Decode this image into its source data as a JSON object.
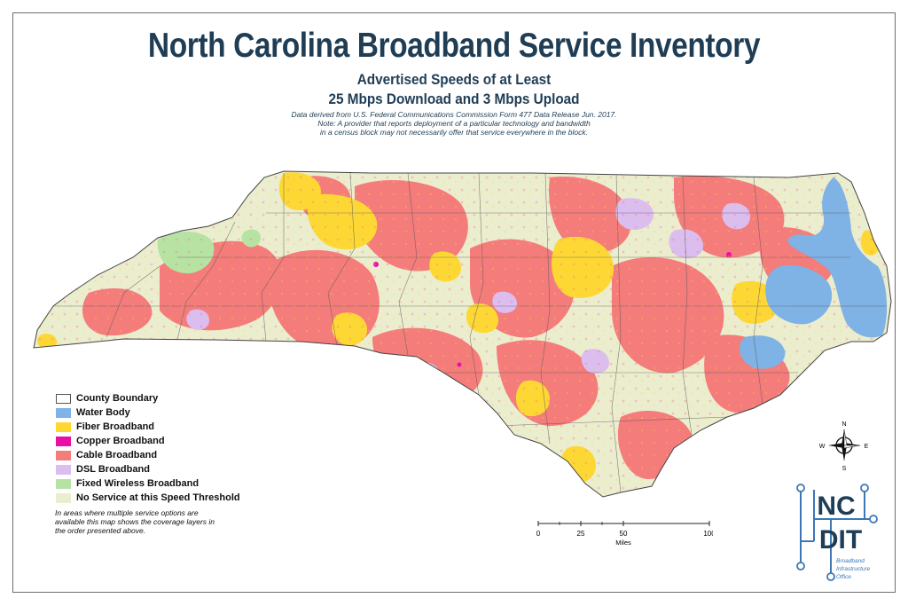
{
  "title": "North Carolina Broadband Service Inventory",
  "subtitle_line1": "Advertised Speeds of at Least",
  "subtitle_line2": "25 Mbps Download and 3 Mbps Upload",
  "notes": [
    "Data derived from U.S. Federal Communications Commission Form 477 Data Release Jun. 2017.",
    "Note: A provider that reports deployment of a particular technology and bandwidth",
    "in a census block may not necessarily offer that service everywhere in the block."
  ],
  "legend": [
    {
      "label": "County Boundary",
      "color": "#ffffff",
      "border": "#555555"
    },
    {
      "label": "Water Body",
      "color": "#7fb2e5"
    },
    {
      "label": "Fiber Broadband",
      "color": "#fdd835"
    },
    {
      "label": "Copper Broadband",
      "color": "#ea0ea8"
    },
    {
      "label": "Cable Broadband",
      "color": "#f47c7a"
    },
    {
      "label": "DSL Broadband",
      "color": "#dbbdf0"
    },
    {
      "label": "Fixed Wireless Broadband",
      "color": "#b6e3a4"
    },
    {
      "label": "No Service at this Speed Threshold",
      "color": "#ebedcf"
    }
  ],
  "legend_note": "In areas where multiple service options are available this map shows the coverage layers in the order presented above.",
  "scale": {
    "ticks": [
      "0",
      "25",
      "50",
      "100"
    ],
    "unit": "Miles"
  },
  "compass": {
    "n": "N",
    "s": "S",
    "e": "E",
    "w": "W"
  },
  "logo": {
    "top": "NC",
    "bottom": "DIT",
    "caption": [
      "Broadband",
      "Infrastructure",
      "Office"
    ]
  }
}
